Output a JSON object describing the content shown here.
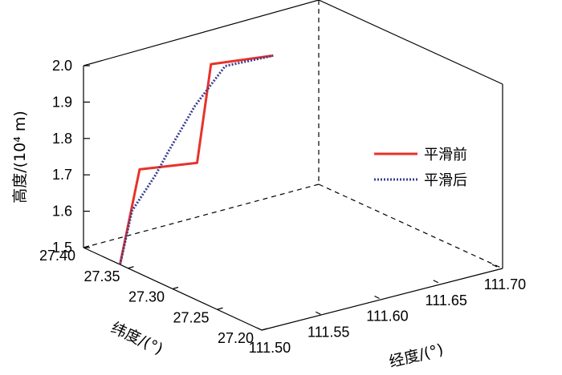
{
  "chart_data": {
    "type": "line",
    "projection": "3d",
    "title": "",
    "xlabel": "经度/(°)",
    "ylabel": "纬度/(°)",
    "zlabel": "高度/(10⁴ m)",
    "xlim": [
      111.5,
      111.7
    ],
    "ylim": [
      27.2,
      27.4
    ],
    "zlim": [
      1.5,
      2.0
    ],
    "xticks": [
      "111.50",
      "111.55",
      "111.60",
      "111.65",
      "111.70"
    ],
    "yticks": [
      "27.40",
      "27.35",
      "27.30",
      "27.25",
      "27.20"
    ],
    "zticks": [
      "2.0",
      "1.9",
      "1.8",
      "1.7",
      "1.6",
      "1.5"
    ],
    "legend_placement": "right",
    "series": [
      {
        "name": "平滑前",
        "color": "#e8322b",
        "style": "solid",
        "points": [
          {
            "x": 111.5,
            "y": 27.359,
            "z": 1.5
          },
          {
            "x": 111.528,
            "y": 27.374,
            "z": 1.72
          },
          {
            "x": 111.564,
            "y": 27.357,
            "z": 1.726
          },
          {
            "x": 111.591,
            "y": 27.377,
            "z": 1.951
          },
          {
            "x": 111.634,
            "y": 27.364,
            "z": 1.952
          }
        ]
      },
      {
        "name": "平滑后",
        "color": "#3a3f8f",
        "style": "dotted",
        "points": [
          {
            "x": 111.5,
            "y": 27.359,
            "z": 1.5
          },
          {
            "x": 111.514,
            "y": 27.364,
            "z": 1.63
          },
          {
            "x": 111.534,
            "y": 27.364,
            "z": 1.711
          },
          {
            "x": 111.551,
            "y": 27.372,
            "z": 1.752
          },
          {
            "x": 111.573,
            "y": 27.371,
            "z": 1.86
          },
          {
            "x": 111.597,
            "y": 27.369,
            "z": 1.95
          },
          {
            "x": 111.634,
            "y": 27.364,
            "z": 1.952
          }
        ]
      }
    ]
  }
}
